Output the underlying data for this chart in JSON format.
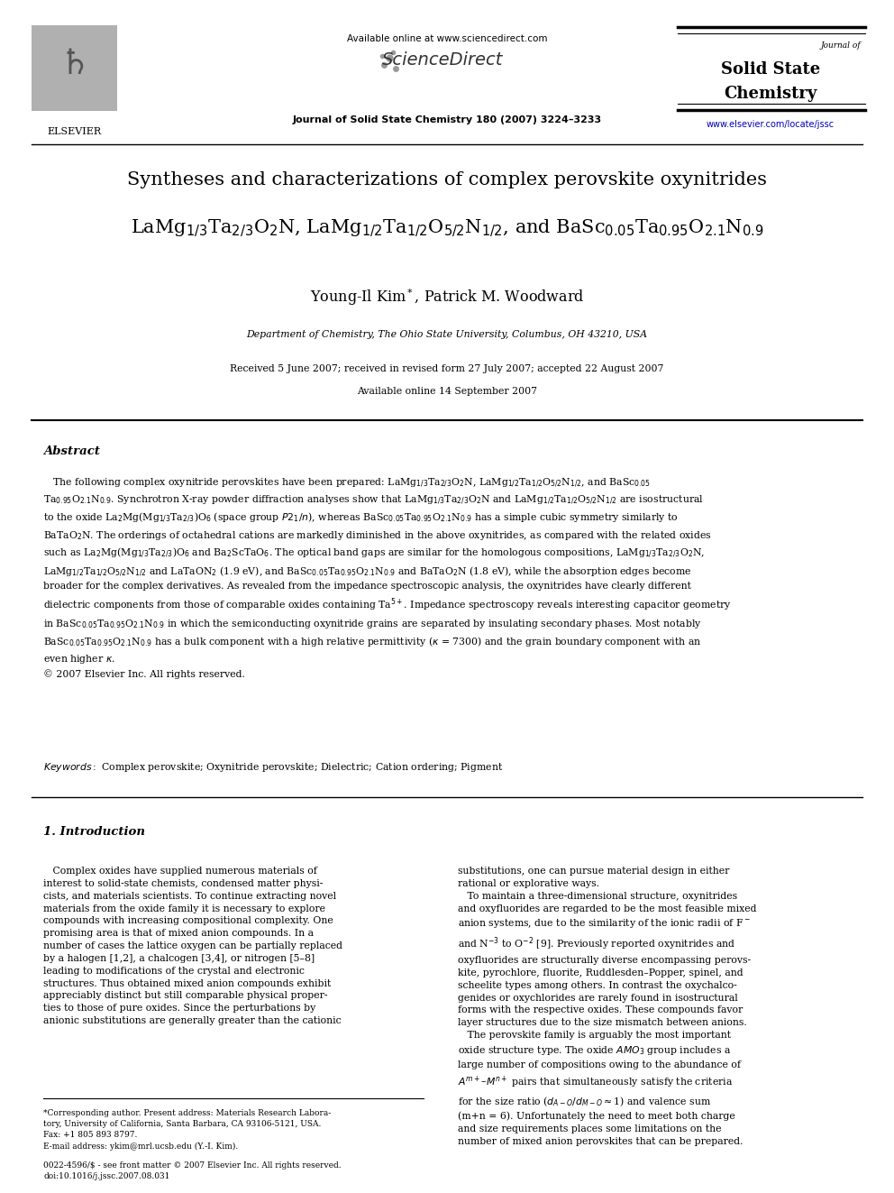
{
  "bg_color": "#ffffff",
  "page_width": 9.92,
  "page_height": 13.23,
  "header_available": "Available online at www.sciencedirect.com",
  "header_sciencedirect": "ScienceDirect",
  "header_journal_of": "Journal of",
  "header_journal_1": "Solid State",
  "header_journal_2": "Chemistry",
  "header_cite": "Journal of Solid State Chemistry 180 (2007) 3224–3233",
  "header_url": "www.elsevier.com/locate/jssc",
  "header_elsevier": "ELSEVIER",
  "title_line1": "Syntheses and characterizations of complex perovskite oxynitrides",
  "authors": "Young-Il Kim*, Patrick M. Woodward",
  "affiliation": "Department of Chemistry, The Ohio State University, Columbus, OH 43210, USA",
  "received_line1": "Received 5 June 2007; received in revised form 27 July 2007; accepted 22 August 2007",
  "received_line2": "Available online 14 September 2007",
  "abstract_label": "Abstract",
  "keywords_text": "Complex perovskite; Oxynitride perovskite; Dielectric; Cation ordering; Pigment",
  "section1": "1. Introduction",
  "footnote": "*Corresponding author. Present address: Materials Research Labora-\ntory, University of California, Santa Barbara, CA 93106-5121, USA.\nFax: +1 805 893 8797.\nE-mail address: ykim@mrl.ucsb.edu (Y.-I. Kim).",
  "bottom_copyright": "0022-4596/$ - see front matter © 2007 Elsevier Inc. All rights reserved.\ndoi:10.1016/j.jssc.2007.08.031",
  "url_color": "#0000bb",
  "text_color": "#000000"
}
